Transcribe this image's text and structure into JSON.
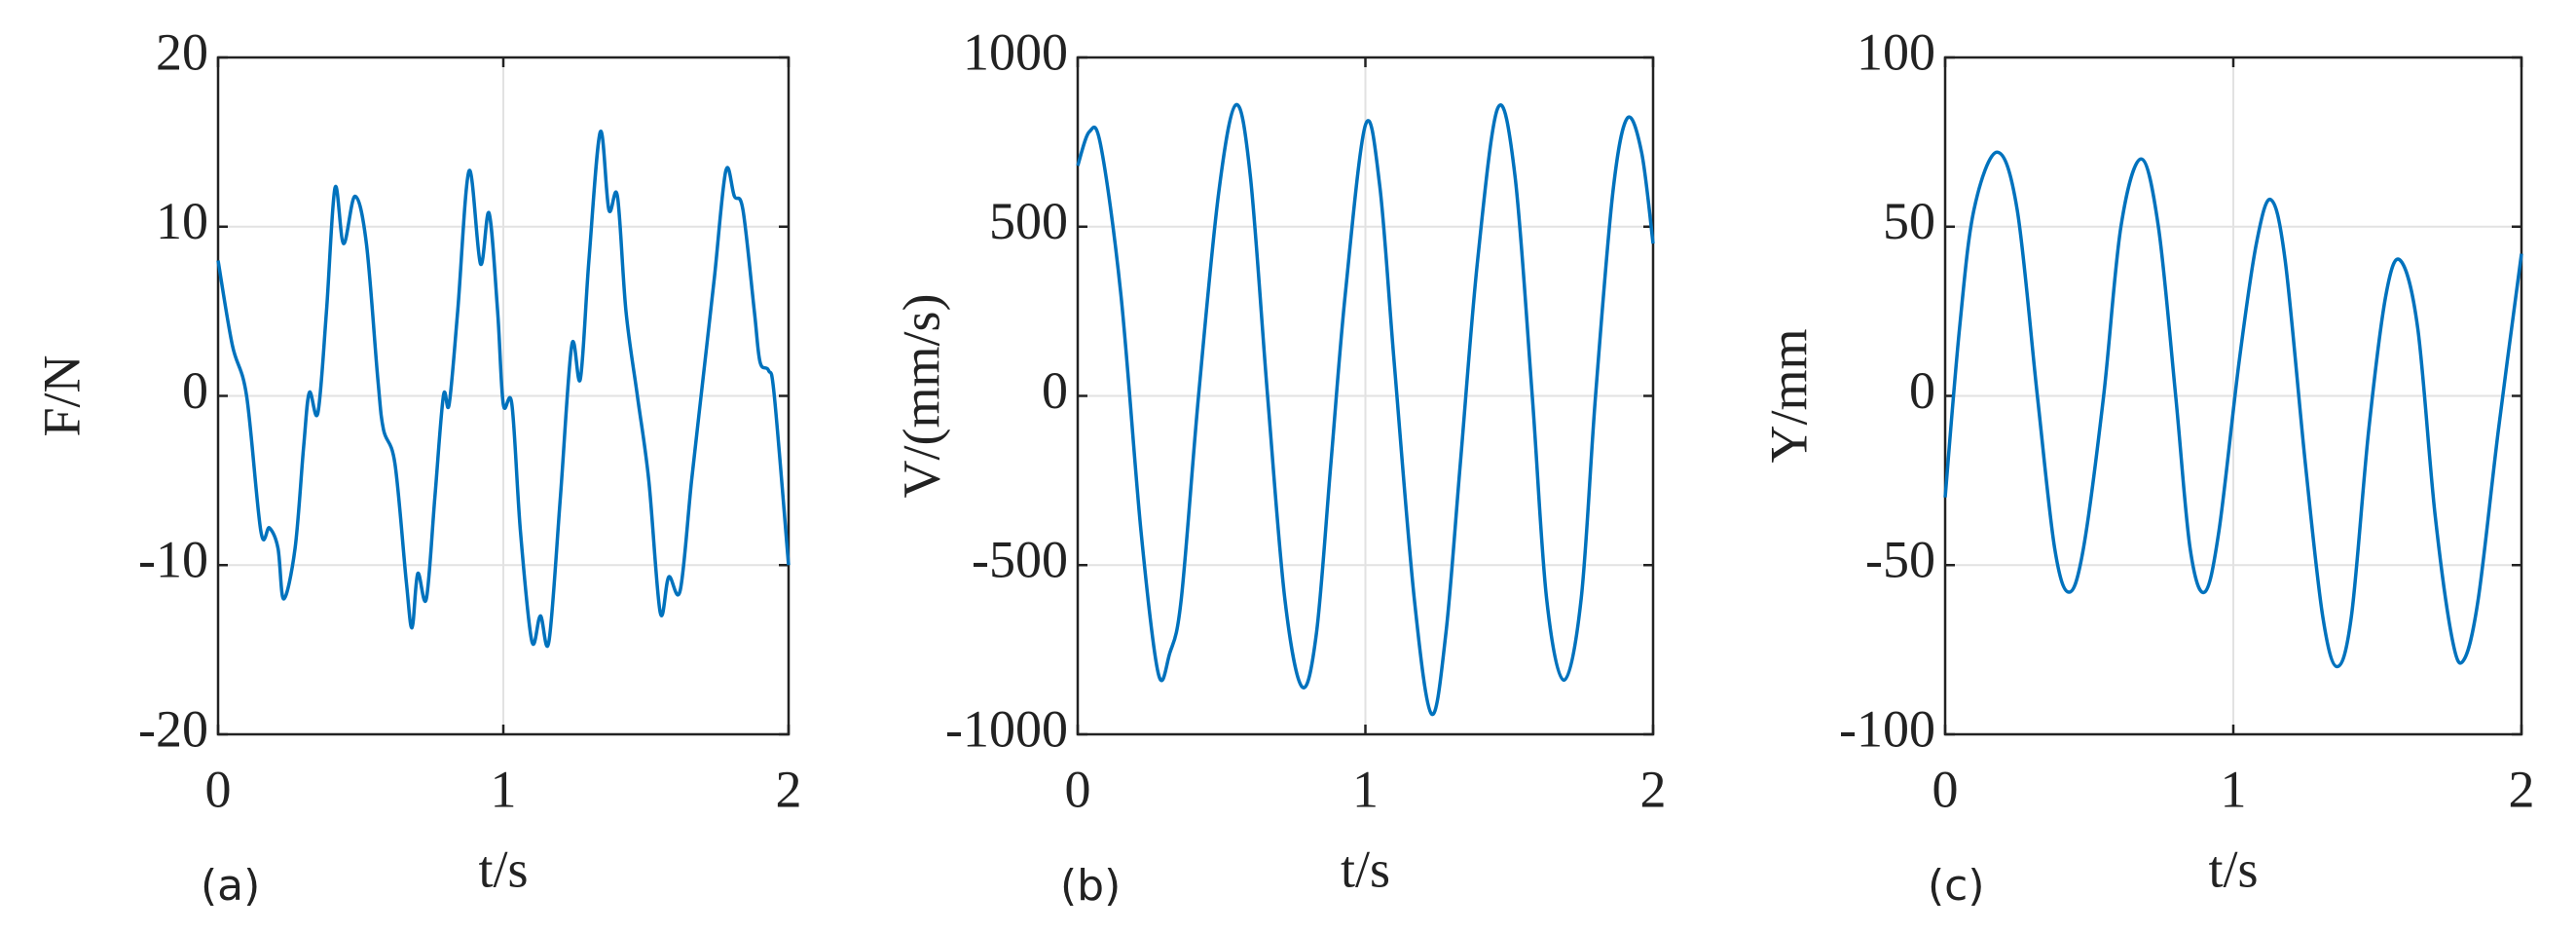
{
  "chart_data": [
    {
      "type": "line",
      "label": "(a)",
      "xlabel": "t/s",
      "ylabel": "F/N",
      "color": "#0072bd",
      "grid": true,
      "xlim": [
        0,
        2
      ],
      "xticks": [
        0,
        1,
        2
      ],
      "ylim": [
        -20,
        20
      ],
      "yticks": [
        -20,
        -10,
        0,
        10,
        20
      ],
      "x": [
        0,
        0.05,
        0.1,
        0.15,
        0.18,
        0.21,
        0.23,
        0.27,
        0.3,
        0.32,
        0.35,
        0.38,
        0.41,
        0.44,
        0.48,
        0.52,
        0.56,
        0.58,
        0.62,
        0.66,
        0.68,
        0.7,
        0.73,
        0.76,
        0.79,
        0.81,
        0.84,
        0.88,
        0.92,
        0.95,
        0.98,
        1.0,
        1.03,
        1.06,
        1.1,
        1.13,
        1.16,
        1.2,
        1.24,
        1.27,
        1.3,
        1.34,
        1.37,
        1.4,
        1.43,
        1.47,
        1.51,
        1.55,
        1.58,
        1.62,
        1.66,
        1.7,
        1.74,
        1.78,
        1.81,
        1.84,
        1.88,
        1.9,
        1.93,
        1.95,
        2.0
      ],
      "values": [
        8,
        3,
        0,
        -8,
        -7.8,
        -9,
        -12,
        -9,
        -3,
        0.2,
        -1,
        5,
        12.3,
        9,
        11.8,
        9,
        1,
        -2,
        -4,
        -11,
        -13.7,
        -10.5,
        -12,
        -6,
        0,
        -0.5,
        5,
        13.3,
        7.8,
        10.8,
        5,
        -0.5,
        -0.5,
        -8,
        -14.5,
        -13,
        -14.5,
        -6,
        3,
        1,
        8,
        15.6,
        11,
        11.8,
        5,
        0,
        -5,
        -12.8,
        -10.7,
        -11.5,
        -5,
        1,
        7,
        13.3,
        11.8,
        11,
        5,
        2,
        1.5,
        0,
        -10
      ]
    },
    {
      "type": "line",
      "label": "(b)",
      "xlabel": "t/s",
      "ylabel": "V/(mm/s)",
      "color": "#0072bd",
      "grid": true,
      "xlim": [
        0,
        2
      ],
      "xticks": [
        0,
        1,
        2
      ],
      "ylim": [
        -1000,
        1000
      ],
      "yticks": [
        -1000,
        -500,
        0,
        500,
        1000
      ],
      "x": [
        0,
        0.04,
        0.08,
        0.15,
        0.22,
        0.28,
        0.32,
        0.36,
        0.42,
        0.49,
        0.55,
        0.6,
        0.66,
        0.72,
        0.78,
        0.83,
        0.88,
        0.93,
        1.0,
        1.05,
        1.1,
        1.17,
        1.23,
        1.28,
        1.33,
        1.39,
        1.46,
        1.52,
        1.58,
        1.63,
        1.69,
        1.75,
        1.8,
        1.86,
        1.91,
        1.96,
        2.0
      ],
      "values": [
        680,
        780,
        740,
        300,
        -400,
        -820,
        -760,
        -600,
        0,
        600,
        860,
        650,
        0,
        -600,
        -860,
        -700,
        -200,
        300,
        800,
        620,
        100,
        -600,
        -940,
        -700,
        -200,
        400,
        850,
        650,
        0,
        -600,
        -840,
        -600,
        0,
        600,
        820,
        720,
        450
      ]
    },
    {
      "type": "line",
      "label": "(c)",
      "xlabel": "t/s",
      "ylabel": "Y/mm",
      "color": "#0072bd",
      "grid": true,
      "xlim": [
        0,
        2
      ],
      "xticks": [
        0,
        1,
        2
      ],
      "ylim": [
        -100,
        100
      ],
      "yticks": [
        -100,
        -50,
        0,
        50,
        100
      ],
      "x": [
        0,
        0.05,
        0.1,
        0.18,
        0.25,
        0.32,
        0.38,
        0.43,
        0.48,
        0.55,
        0.61,
        0.68,
        0.74,
        0.8,
        0.85,
        0.9,
        0.95,
        1.02,
        1.08,
        1.13,
        1.18,
        1.25,
        1.31,
        1.36,
        1.41,
        1.47,
        1.53,
        1.58,
        1.64,
        1.7,
        1.76,
        1.8,
        1.85,
        1.92,
        2.0
      ],
      "values": [
        -30,
        20,
        55,
        72,
        55,
        0,
        -45,
        -58,
        -45,
        0,
        50,
        70,
        50,
        0,
        -45,
        -58,
        -40,
        10,
        45,
        58,
        40,
        -20,
        -65,
        -80,
        -65,
        -10,
        30,
        40,
        20,
        -35,
        -72,
        -78,
        -60,
        -10,
        42
      ]
    }
  ]
}
